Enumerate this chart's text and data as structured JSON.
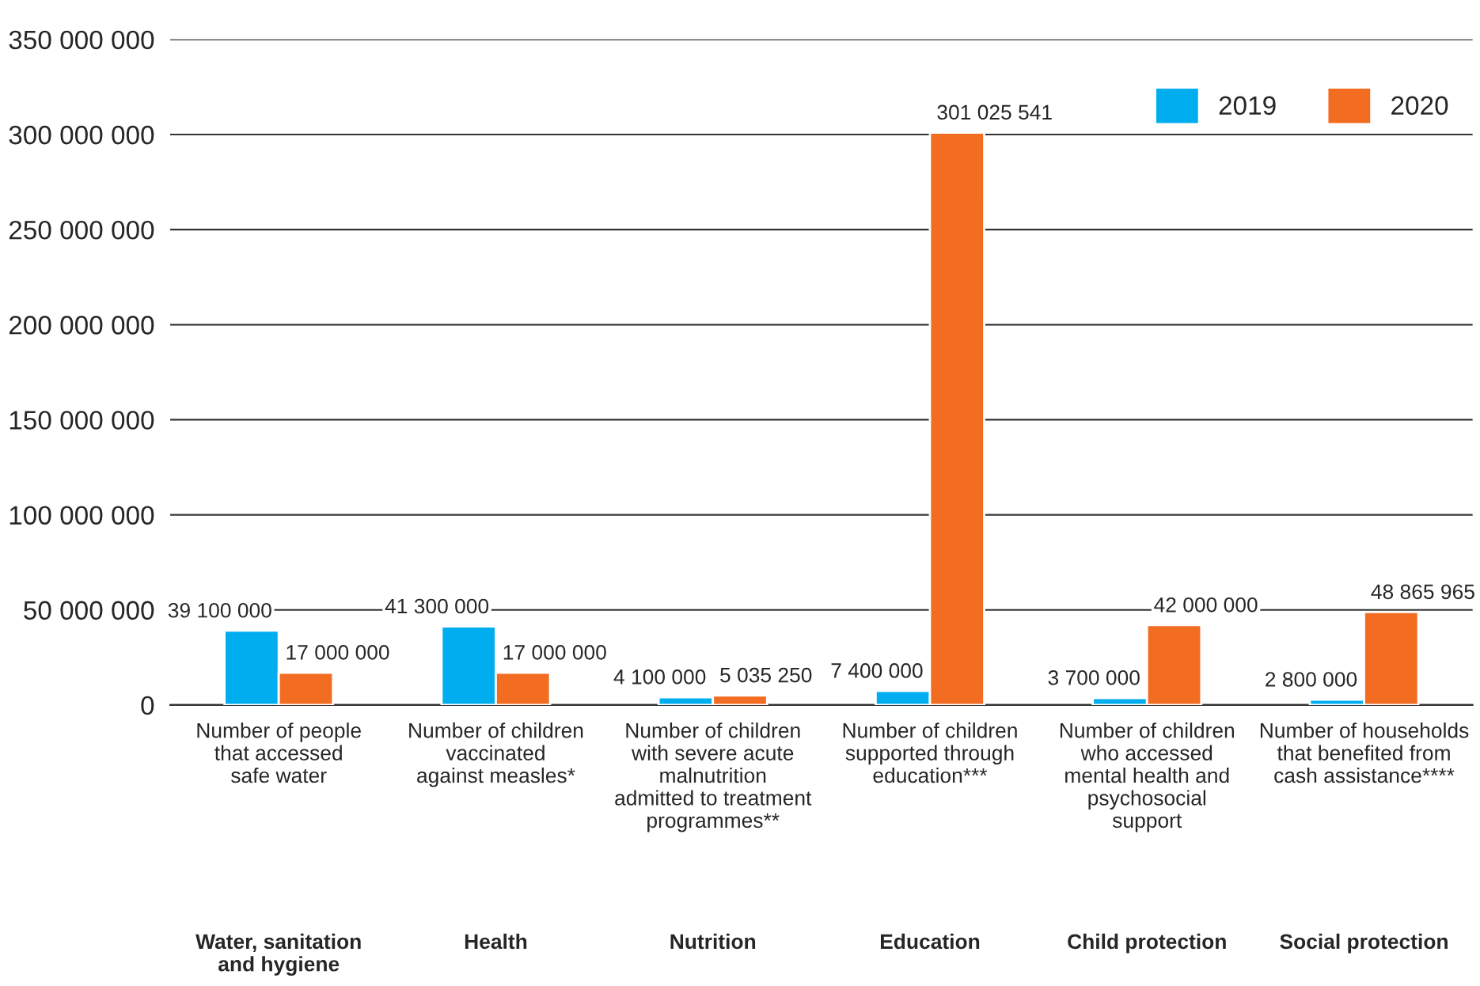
{
  "chart_data": {
    "type": "bar",
    "categories": [
      "Number of people\nthat accessed\nsafe water",
      "Number of children\nvaccinated\nagainst measles*",
      "Number of children\nwith severe acute\nmalnutrition\nadmitted to treatment\nprogrammes**",
      "Number of children\nsupported through\neducation***",
      "Number of children\nwho accessed\nmental health and\npsychosocial\nsupport",
      "Number of households\nthat benefited from\ncash assistance****"
    ],
    "series": [
      {
        "name": "2019",
        "color": "#00aeef",
        "values": [
          39100000,
          41300000,
          4100000,
          7400000,
          3700000,
          2800000
        ],
        "value_labels": [
          "39 100 000",
          "41 300 000",
          "4 100 000",
          "7 400 000",
          "3 700 000",
          "2 800 000"
        ]
      },
      {
        "name": "2020",
        "color": "#f26c21",
        "values": [
          17000000,
          17000000,
          5035250,
          301025541,
          42000000,
          48865965
        ],
        "value_labels": [
          "17 000 000",
          "17 000 000",
          "5 035 250",
          "301 025 541",
          "42 000 000",
          "48 865 965"
        ]
      }
    ],
    "ylim": [
      0,
      350000000
    ],
    "yticks": [
      {
        "value": 0,
        "label": "0"
      },
      {
        "value": 50000000,
        "label": "50 000 000"
      },
      {
        "value": 100000000,
        "label": "100 000 000"
      },
      {
        "value": 150000000,
        "label": "150 000 000"
      },
      {
        "value": 200000000,
        "label": "200 000 000"
      },
      {
        "value": 250000000,
        "label": "250 000 000"
      },
      {
        "value": 300000000,
        "label": "300 000 000"
      },
      {
        "value": 350000000,
        "label": "350 000 000"
      }
    ],
    "grid": "y",
    "legend": "top right",
    "annotations": [
      "Water, sanitation\nand hygiene",
      "Health",
      "Nutrition",
      "Education",
      "Child protection",
      "Social protection"
    ]
  }
}
